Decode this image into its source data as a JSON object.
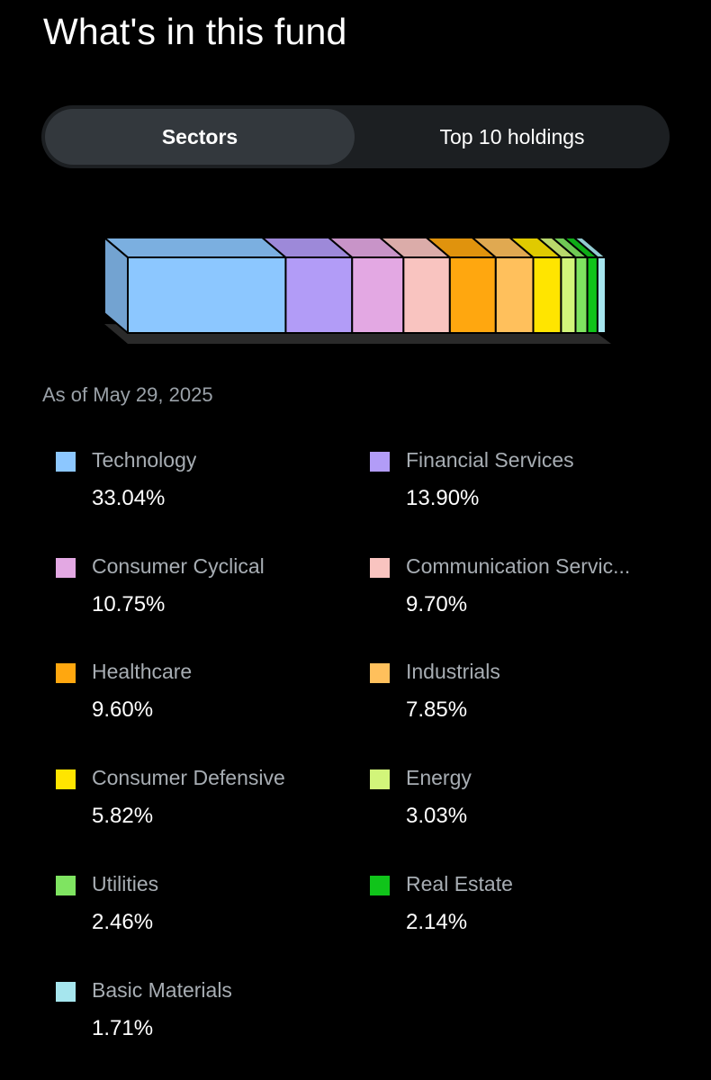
{
  "header": {
    "title": "What's in this fund"
  },
  "tabs": [
    {
      "label": "Sectors",
      "active": true
    },
    {
      "label": "Top 10 holdings",
      "active": false
    }
  ],
  "as_of": "As of May 29, 2025",
  "chart_data": {
    "type": "bar",
    "orientation": "stacked-horizontal-3d",
    "unit": "%",
    "categories": [
      "Technology",
      "Financial Services",
      "Consumer Cyclical",
      "Communication Servic...",
      "Healthcare",
      "Industrials",
      "Consumer Defensive",
      "Energy",
      "Utilities",
      "Real Estate",
      "Basic Materials"
    ],
    "values": [
      33.04,
      13.9,
      10.75,
      9.7,
      9.6,
      7.85,
      5.82,
      3.03,
      2.46,
      2.14,
      1.71
    ],
    "labels": [
      "33.04%",
      "13.90%",
      "10.75%",
      "9.70%",
      "9.60%",
      "7.85%",
      "5.82%",
      "3.03%",
      "2.46%",
      "2.14%",
      "1.71%"
    ],
    "colors": [
      "#8cc7ff",
      "#b29cf7",
      "#e3a8e3",
      "#f9c4c0",
      "#ffa70f",
      "#ffc05c",
      "#ffe500",
      "#d2f57a",
      "#7fe461",
      "#10c41a",
      "#a6e6ee"
    ],
    "legend": "bottom-two-columns"
  }
}
